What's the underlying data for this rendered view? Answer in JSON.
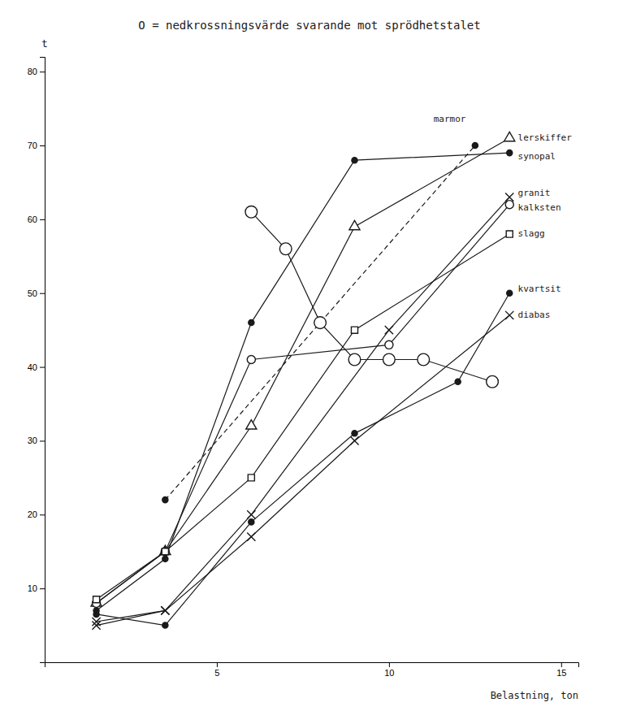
{
  "chart_data": {
    "type": "line",
    "title": "O = nedkrossningsvärde svarande mot sprödhetstalet",
    "x_label": "Belastning, ton",
    "y_label": "t",
    "color": "#1a1a1a",
    "xlim": [
      0,
      15.5
    ],
    "ylim": [
      0,
      82
    ],
    "xticks": [
      5,
      10,
      15
    ],
    "yticks": [
      10,
      20,
      30,
      40,
      50,
      60,
      70,
      80
    ],
    "series": [
      {
        "x": [
          1.5,
          3.5,
          6,
          9,
          13.5
        ],
        "values": [
          8,
          15,
          32,
          59,
          71
        ],
        "marker": "open-triangle",
        "line_style": "solid"
      },
      {
        "x": [
          1.5,
          3.5,
          6,
          9,
          13.5
        ],
        "values": [
          7,
          14,
          46,
          68,
          69
        ],
        "marker": "filled-circle",
        "line_style": "solid"
      },
      {
        "x": [
          3.5,
          12.5
        ],
        "values": [
          22,
          70
        ],
        "marker": "filled-circle",
        "line_style": "dashed"
      },
      {
        "x": [
          1.5,
          3.5,
          6,
          10,
          13.5
        ],
        "values": [
          5.5,
          7,
          20,
          45,
          63
        ],
        "marker": "x",
        "line_style": "solid"
      },
      {
        "x": [
          1.5,
          3.5,
          6,
          10,
          13.5
        ],
        "values": [
          8,
          15,
          41,
          43,
          62
        ],
        "marker": "open-circle",
        "line_style": "solid"
      },
      {
        "x": [
          1.5,
          3.5,
          6,
          9,
          13.5
        ],
        "values": [
          8.5,
          15,
          25,
          45,
          58
        ],
        "marker": "open-square",
        "line_style": "solid"
      },
      {
        "x": [
          1.5,
          3.5,
          6,
          9,
          12,
          13.5
        ],
        "values": [
          6.5,
          5,
          19,
          31,
          38,
          50
        ],
        "marker": "filled-circle",
        "line_style": "solid"
      },
      {
        "x": [
          1.5,
          3.5,
          6,
          9,
          13.5
        ],
        "values": [
          5,
          7,
          17,
          30,
          47
        ],
        "marker": "x",
        "line_style": "solid"
      },
      {
        "x": [
          6,
          7,
          8,
          9,
          10,
          11,
          13
        ],
        "values": [
          61,
          56,
          46,
          41,
          41,
          41,
          38
        ],
        "marker": "large-open-circle",
        "line_style": "solid"
      }
    ],
    "annotations": [
      {
        "text": "lerskiffer",
        "x": 13.65,
        "y": 71.0
      },
      {
        "text": "synopal",
        "x": 13.65,
        "y": 68.5
      },
      {
        "text": "granit",
        "x": 13.65,
        "y": 63.5
      },
      {
        "text": "kalksten",
        "x": 13.65,
        "y": 61.5
      },
      {
        "text": "slagg",
        "x": 13.65,
        "y": 58.0
      },
      {
        "text": "kvartsit",
        "x": 13.65,
        "y": 50.5
      },
      {
        "text": "diabas",
        "x": 13.65,
        "y": 47.0
      },
      {
        "text": "marmor",
        "x": 11.2,
        "y": 73.5
      }
    ]
  }
}
